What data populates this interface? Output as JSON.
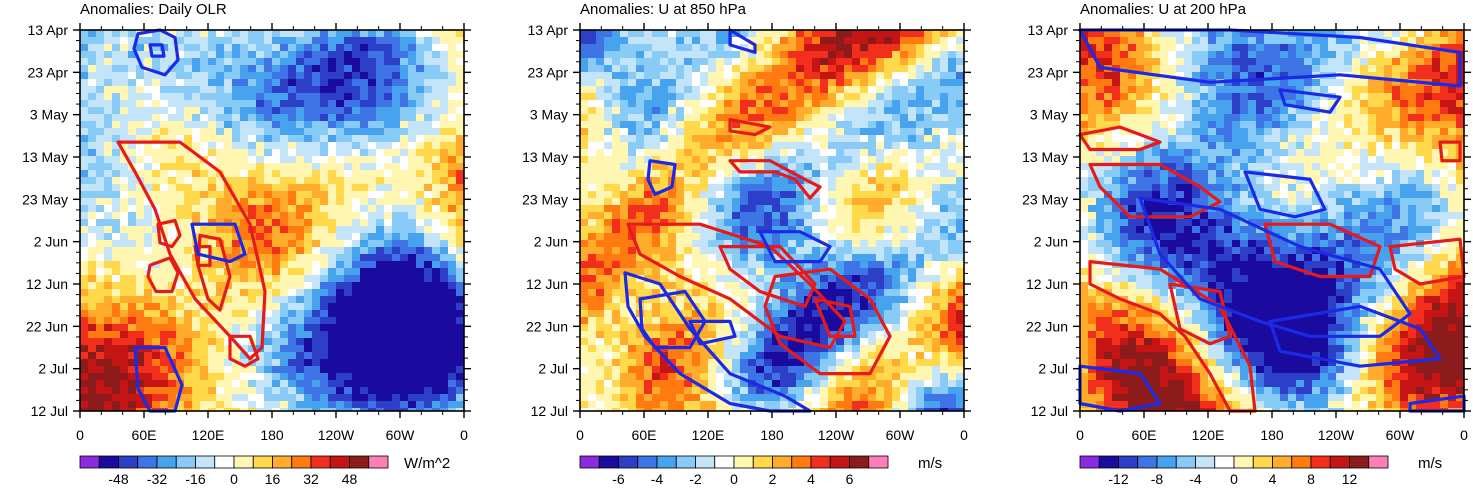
{
  "chart_data": [
    {
      "type": "heatmap",
      "title": "Anomalies: Daily OLR",
      "y_ticks": [
        "13 Apr",
        "23 Apr",
        "3 May",
        "13 May",
        "23 May",
        "2 Jun",
        "12 Jun",
        "22 Jun",
        "2 Jul",
        "12 Jul"
      ],
      "x_ticks": [
        "0",
        "60E",
        "120E",
        "180",
        "120W",
        "60W",
        "0"
      ],
      "colorbar": {
        "ticks": [
          "-48",
          "-32",
          "-16",
          "0",
          "16",
          "32",
          "48"
        ],
        "units": "W/m^2"
      },
      "contours": {
        "red": [
          [
            [
              70,
              63
            ],
            [
              90,
              61
            ],
            [
              98,
              65
            ],
            [
              92,
              70
            ],
            [
              76,
              70
            ],
            [
              68,
              66
            ]
          ],
          [
            [
              78,
              52
            ],
            [
              95,
              51
            ],
            [
              100,
              55
            ],
            [
              92,
              58
            ],
            [
              80,
              57
            ]
          ],
          [
            [
              115,
              58
            ],
            [
              130,
              58
            ],
            [
              130,
              63
            ],
            [
              118,
              63
            ]
          ],
          [
            [
              38,
              30
            ],
            [
              100,
              30
            ],
            [
              140,
              38
            ],
            [
              170,
              52
            ],
            [
              185,
              70
            ],
            [
              182,
              85
            ],
            [
              170,
              88
            ],
            [
              150,
              82
            ],
            [
              115,
              72
            ],
            [
              90,
              60
            ],
            [
              75,
              48
            ],
            [
              55,
              38
            ]
          ],
          [
            [
              120,
              55
            ],
            [
              140,
              56
            ],
            [
              150,
              66
            ],
            [
              140,
              75
            ],
            [
              128,
              72
            ],
            [
              118,
              63
            ]
          ],
          [
            [
              150,
              82
            ],
            [
              170,
              82
            ],
            [
              178,
              88
            ],
            [
              165,
              90
            ],
            [
              150,
              88
            ]
          ]
        ],
        "blue": [
          [
            [
              58,
              1
            ],
            [
              80,
              0
            ],
            [
              95,
              2
            ],
            [
              98,
              8
            ],
            [
              85,
              12
            ],
            [
              62,
              10
            ],
            [
              54,
              5
            ]
          ],
          [
            [
              70,
              4
            ],
            [
              82,
              4
            ],
            [
              84,
              7
            ],
            [
              72,
              7
            ]
          ],
          [
            [
              112,
              52
            ],
            [
              155,
              52
            ],
            [
              165,
              60
            ],
            [
              150,
              62
            ],
            [
              118,
              60
            ]
          ],
          [
            [
              55,
              85
            ],
            [
              85,
              85
            ],
            [
              102,
              95
            ],
            [
              95,
              102
            ],
            [
              70,
              102
            ],
            [
              58,
              96
            ]
          ]
        ]
      },
      "scale": 48
    },
    {
      "type": "heatmap",
      "title": "Anomalies: U at 850 hPa",
      "y_ticks": [
        "13 Apr",
        "23 Apr",
        "3 May",
        "13 May",
        "23 May",
        "2 Jun",
        "12 Jun",
        "22 Jun",
        "2 Jul",
        "12 Jul"
      ],
      "x_ticks": [
        "0",
        "60E",
        "120E",
        "180",
        "120W",
        "60W",
        "0"
      ],
      "colorbar": {
        "ticks": [
          "-6",
          "-4",
          "-2",
          "0",
          "2",
          "4",
          "6"
        ],
        "units": "m/s"
      },
      "contours": {
        "red": [
          [
            [
              48,
              52
            ],
            [
              120,
              52
            ],
            [
              190,
              58
            ],
            [
              230,
              68
            ],
            [
              265,
              78
            ],
            [
              250,
              85
            ],
            [
              200,
              82
            ],
            [
              150,
              72
            ],
            [
              100,
              66
            ],
            [
              60,
              60
            ]
          ],
          [
            [
              140,
              58
            ],
            [
              200,
              58
            ],
            [
              235,
              68
            ],
            [
              225,
              74
            ],
            [
              180,
              70
            ],
            [
              150,
              64
            ]
          ],
          [
            [
              195,
              66
            ],
            [
              250,
              64
            ],
            [
              290,
              72
            ],
            [
              310,
              82
            ],
            [
              290,
              92
            ],
            [
              240,
              92
            ],
            [
              200,
              84
            ],
            [
              185,
              74
            ]
          ],
          [
            [
              235,
              72
            ],
            [
              270,
              74
            ],
            [
              275,
              82
            ],
            [
              250,
              82
            ]
          ],
          [
            [
              150,
              35
            ],
            [
              190,
              35
            ],
            [
              225,
              40
            ],
            [
              240,
              42
            ],
            [
              230,
              45
            ],
            [
              215,
              40
            ],
            [
              195,
              38
            ],
            [
              160,
              38
            ]
          ],
          [
            [
              150,
              24
            ],
            [
              190,
              26
            ],
            [
              175,
              28
            ],
            [
              150,
              27
            ]
          ]
        ],
        "blue": [
          [
            [
              150,
              0
            ],
            [
              175,
              4
            ],
            [
              175,
              6
            ],
            [
              150,
              4
            ]
          ],
          [
            [
              70,
              35
            ],
            [
              95,
              36
            ],
            [
              92,
              42
            ],
            [
              75,
              44
            ],
            [
              68,
              40
            ]
          ],
          [
            [
              180,
              54
            ],
            [
              220,
              54
            ],
            [
              250,
              58
            ],
            [
              240,
              62
            ],
            [
              195,
              62
            ]
          ],
          [
            [
              45,
              65
            ],
            [
              80,
              68
            ],
            [
              110,
              80
            ],
            [
              150,
              92
            ],
            [
              205,
              98
            ],
            [
              230,
              102
            ],
            [
              190,
              102
            ],
            [
              150,
              100
            ],
            [
              100,
              92
            ],
            [
              65,
              82
            ],
            [
              48,
              74
            ]
          ],
          [
            [
              60,
              72
            ],
            [
              105,
              70
            ],
            [
              125,
              78
            ],
            [
              110,
              85
            ],
            [
              75,
              85
            ],
            [
              62,
              80
            ]
          ],
          [
            [
              110,
              78
            ],
            [
              150,
              78
            ],
            [
              155,
              82
            ],
            [
              120,
              84
            ]
          ]
        ]
      },
      "scale": 6
    },
    {
      "type": "heatmap",
      "title": "Anomalies: U at 200 hPa",
      "y_ticks": [
        "13 Apr",
        "23 Apr",
        "3 May",
        "13 May",
        "23 May",
        "2 Jun",
        "12 Jun",
        "22 Jun",
        "2 Jul",
        "12 Jul"
      ],
      "x_ticks": [
        "0",
        "60E",
        "120E",
        "180",
        "120W",
        "60W",
        "0"
      ],
      "colorbar": {
        "ticks": [
          "-12",
          "-8",
          "-4",
          "0",
          "4",
          "8",
          "12"
        ],
        "units": "m/s"
      },
      "contours": {
        "red": [
          [
            [
              0,
              28
            ],
            [
              40,
              26
            ],
            [
              80,
              30
            ],
            [
              60,
              32
            ],
            [
              10,
              32
            ]
          ],
          [
            [
              10,
              36
            ],
            [
              80,
              36
            ],
            [
              120,
              42
            ],
            [
              140,
              46
            ],
            [
              110,
              50
            ],
            [
              50,
              50
            ],
            [
              20,
              42
            ]
          ],
          [
            [
              185,
              52
            ],
            [
              250,
              52
            ],
            [
              300,
              58
            ],
            [
              290,
              66
            ],
            [
              240,
              66
            ],
            [
              195,
              62
            ]
          ],
          [
            [
              310,
              58
            ],
            [
              380,
              56
            ],
            [
              384,
              66
            ],
            [
              340,
              68
            ],
            [
              315,
              64
            ]
          ],
          [
            [
              10,
              62
            ],
            [
              80,
              64
            ],
            [
              140,
              74
            ],
            [
              170,
              90
            ],
            [
              175,
              102
            ],
            [
              150,
              102
            ],
            [
              130,
              92
            ],
            [
              105,
              82
            ],
            [
              80,
              76
            ],
            [
              40,
              72
            ],
            [
              10,
              68
            ]
          ],
          [
            [
              90,
              68
            ],
            [
              140,
              70
            ],
            [
              150,
              82
            ],
            [
              130,
              84
            ],
            [
              100,
              80
            ]
          ],
          [
            [
              360,
              30
            ],
            [
              380,
              30
            ],
            [
              380,
              35
            ],
            [
              362,
              35
            ]
          ]
        ],
        "blue": [
          [
            [
              0,
              0
            ],
            [
              150,
              0
            ],
            [
              280,
              2
            ],
            [
              380,
              6
            ],
            [
              380,
              15
            ],
            [
              260,
              12
            ],
            [
              130,
              14
            ],
            [
              20,
              10
            ]
          ],
          [
            [
              200,
              16
            ],
            [
              260,
              18
            ],
            [
              250,
              22
            ],
            [
              205,
              20
            ]
          ],
          [
            [
              165,
              38
            ],
            [
              230,
              40
            ],
            [
              245,
              48
            ],
            [
              215,
              50
            ],
            [
              180,
              48
            ]
          ],
          [
            [
              60,
              45
            ],
            [
              140,
              48
            ],
            [
              220,
              58
            ],
            [
              300,
              64
            ],
            [
              330,
              76
            ],
            [
              300,
              82
            ],
            [
              230,
              82
            ],
            [
              180,
              78
            ],
            [
              120,
              72
            ],
            [
              80,
              60
            ]
          ],
          [
            [
              190,
              78
            ],
            [
              280,
              74
            ],
            [
              340,
              80
            ],
            [
              360,
              88
            ],
            [
              280,
              90
            ],
            [
              200,
              86
            ]
          ],
          [
            [
              0,
              90
            ],
            [
              60,
              92
            ],
            [
              80,
              100
            ],
            [
              40,
              102
            ],
            [
              0,
              100
            ]
          ],
          [
            [
              330,
              100
            ],
            [
              384,
              98
            ],
            [
              384,
              102
            ],
            [
              330,
              102
            ]
          ]
        ]
      },
      "scale": 12
    }
  ]
}
